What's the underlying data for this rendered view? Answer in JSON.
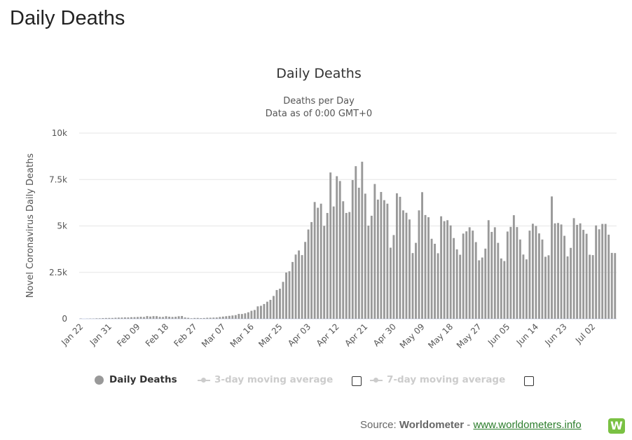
{
  "page": {
    "heading": "Daily Deaths"
  },
  "chart_data": {
    "type": "bar",
    "title": "Daily Deaths",
    "subtitle_lines": [
      "Deaths per Day",
      "Data as of 0:00 GMT+0"
    ],
    "ylabel": "Novel Coronavirus Daily Deaths",
    "xlabel": "",
    "ylim": [
      0,
      10000
    ],
    "yticks": [
      0,
      2500,
      5000,
      7500,
      10000
    ],
    "ytick_labels": [
      "0",
      "2.5k",
      "5k",
      "7.5k",
      "10k"
    ],
    "grid": true,
    "color": "#999999",
    "start_date": "Jan 22",
    "xtick_labels": [
      "Jan 22",
      "Jan 31",
      "Feb 09",
      "Feb 18",
      "Feb 27",
      "Mar 07",
      "Mar 16",
      "Mar 25",
      "Apr 03",
      "Apr 12",
      "Apr 21",
      "Apr 30",
      "May 09",
      "May 18",
      "May 27",
      "Jun 05",
      "Jun 14",
      "Jun 23",
      "Jul 02"
    ],
    "series": [
      {
        "name": "Daily Deaths",
        "values": [
          17,
          0,
          8,
          16,
          14,
          26,
          26,
          38,
          43,
          46,
          45,
          57,
          64,
          66,
          73,
          73,
          86,
          89,
          97,
          108,
          97,
          146,
          121,
          143,
          142,
          105,
          98,
          139,
          112,
          99,
          108,
          138,
          150,
          71,
          52,
          29,
          44,
          47,
          35,
          42,
          56,
          59,
          64,
          71,
          98,
          119,
          139,
          159,
          179,
          199,
          263,
          258,
          294,
          350,
          431,
          475,
          670,
          700,
          795,
          920,
          1020,
          1230,
          1550,
          1620,
          1990,
          2490,
          2560,
          3060,
          3460,
          3680,
          3430,
          4140,
          4810,
          5210,
          6290,
          5980,
          6200,
          5010,
          5700,
          7880,
          6050,
          7680,
          7420,
          6330,
          5700,
          5750,
          7470,
          8220,
          7060,
          8460,
          6740,
          5020,
          5550,
          7260,
          6420,
          6830,
          6390,
          6200,
          3830,
          4510,
          6760,
          6570,
          5840,
          5710,
          5350,
          3540,
          4090,
          5840,
          6820,
          5590,
          5470,
          4310,
          4040,
          3530,
          5520,
          5260,
          5310,
          5030,
          4350,
          3740,
          3450,
          4590,
          4710,
          4930,
          4750,
          4130,
          3150,
          3300,
          3780,
          5310,
          4680,
          4930,
          4090,
          3250,
          3110,
          4700,
          4950,
          5580,
          4940,
          4270,
          3460,
          3200,
          4750,
          5120,
          5000,
          4600,
          4270,
          3340,
          3420,
          6590,
          5140,
          5160,
          5080,
          4470,
          3360,
          3820,
          5420,
          5060,
          5140,
          4790,
          4580,
          3450,
          3430,
          5030,
          4820,
          5110,
          5110,
          4530,
          3550,
          3540
        ]
      }
    ]
  },
  "legend": {
    "items": [
      {
        "label": "Daily Deaths",
        "color": "#999999"
      },
      {
        "label": "3-day moving average",
        "color": "#cccccc"
      },
      {
        "label": "7-day moving average",
        "color": "#cccccc"
      }
    ]
  },
  "source": {
    "prefix": "Source: ",
    "name": "Worldometer",
    "separator": " - ",
    "link": "www.worldometers.info",
    "logo_letter": "W"
  }
}
